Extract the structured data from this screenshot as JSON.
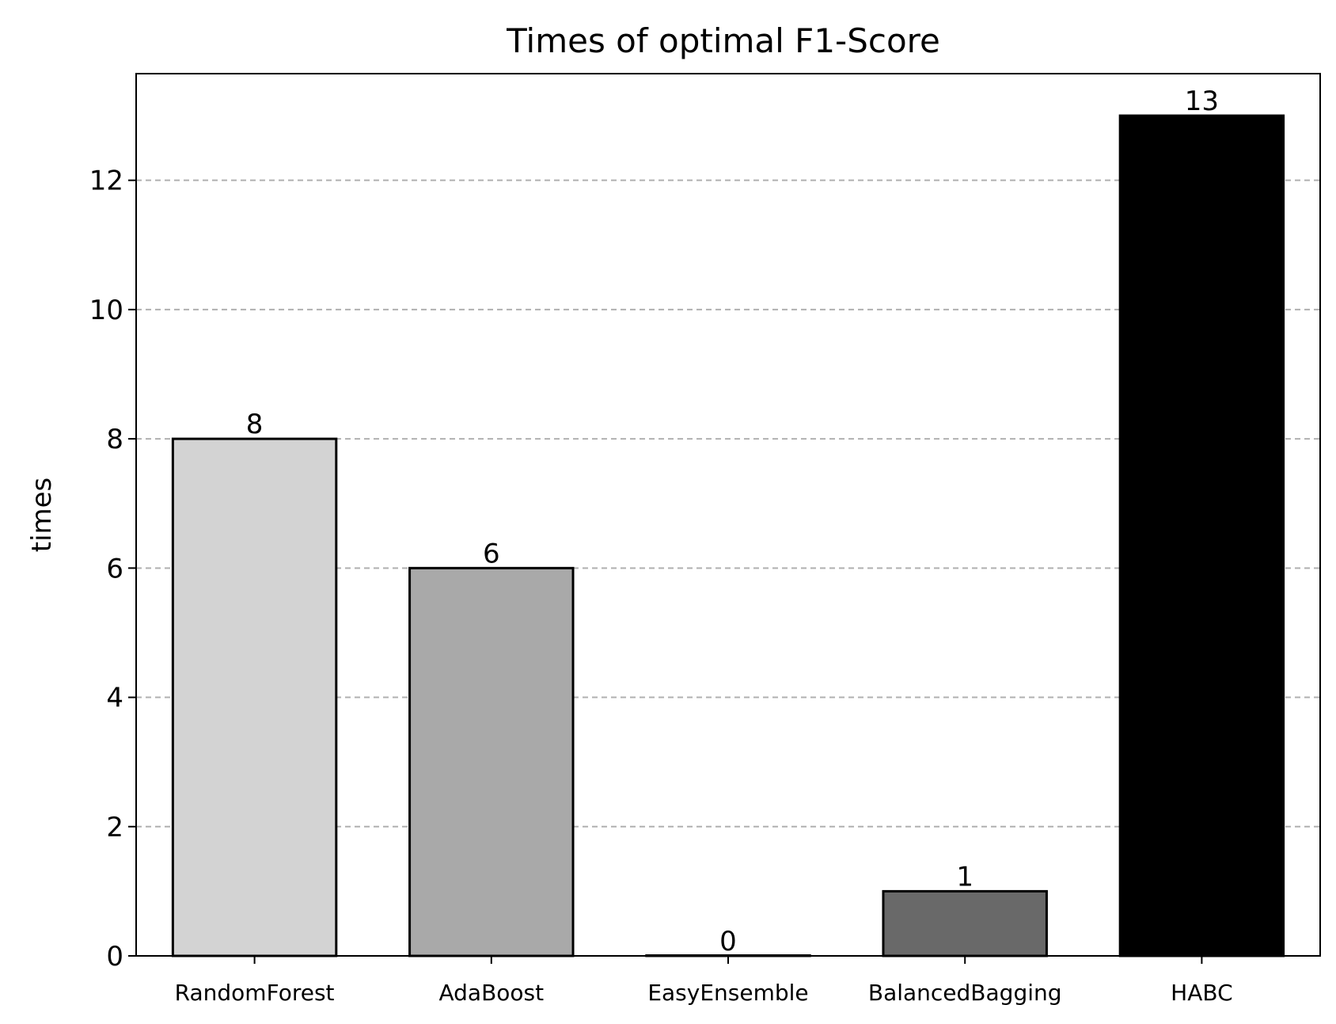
{
  "chart_data": {
    "type": "bar",
    "title": "Times of optimal F1-Score",
    "xlabel": "",
    "ylabel": "times",
    "categories": [
      "RandomForest",
      "AdaBoost",
      "EasyEnsemble",
      "BalancedBagging",
      "HABC"
    ],
    "values": [
      8,
      6,
      0,
      1,
      13
    ],
    "bar_colors": [
      "#d3d3d3",
      "#a9a9a9",
      "#ffffff",
      "#696969",
      "#000000"
    ],
    "edge_color": "#000000",
    "yticks": [
      0,
      2,
      4,
      6,
      8,
      10,
      12
    ],
    "ylim": [
      0,
      13.65
    ],
    "grid": "y-dashed",
    "legend": "none"
  }
}
